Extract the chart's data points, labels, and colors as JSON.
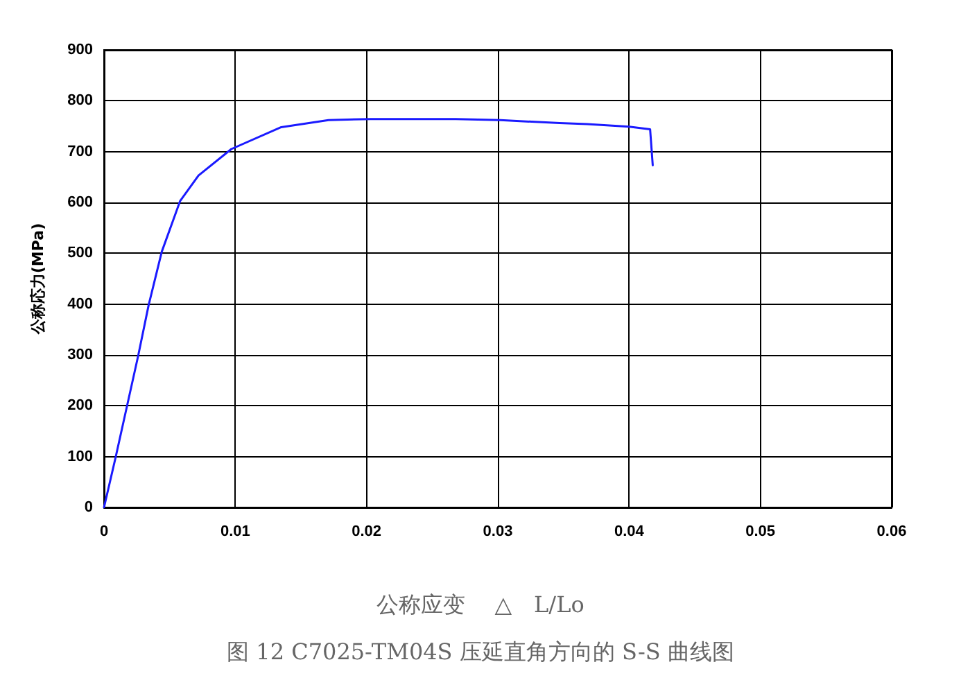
{
  "chart_data": {
    "type": "line",
    "xlabel": "公称应变　 △　L/Lo",
    "ylabel": "公称応力(MPa)",
    "annotations": [
      "图 12 C7025-TM04S 压延直角方向的 S-S 曲线图"
    ],
    "x": [
      0,
      0.00088,
      0.0026,
      0.0034,
      0.0044,
      0.0058,
      0.0072,
      0.0097,
      0.0135,
      0.0171,
      0.0203,
      0.0268,
      0.0302,
      0.0347,
      0.0368,
      0.04,
      0.0416,
      0.0418
    ],
    "series": [
      {
        "color": "#1a1aff",
        "values": [
          0,
          98,
          298,
          398,
          503,
          603,
          653,
          705,
          748,
          762,
          764,
          764,
          762,
          756,
          754,
          749,
          744,
          673
        ]
      }
    ],
    "xlim": [
      0,
      0.06
    ],
    "xticks": [
      0,
      0.01,
      0.02,
      0.03,
      0.04,
      0.05,
      0.06
    ],
    "ylim": [
      0,
      900
    ],
    "yticks": [
      0,
      100,
      200,
      300,
      400,
      500,
      600,
      700,
      800,
      900
    ],
    "grid": true,
    "marker": "none",
    "line_style": "solid"
  }
}
